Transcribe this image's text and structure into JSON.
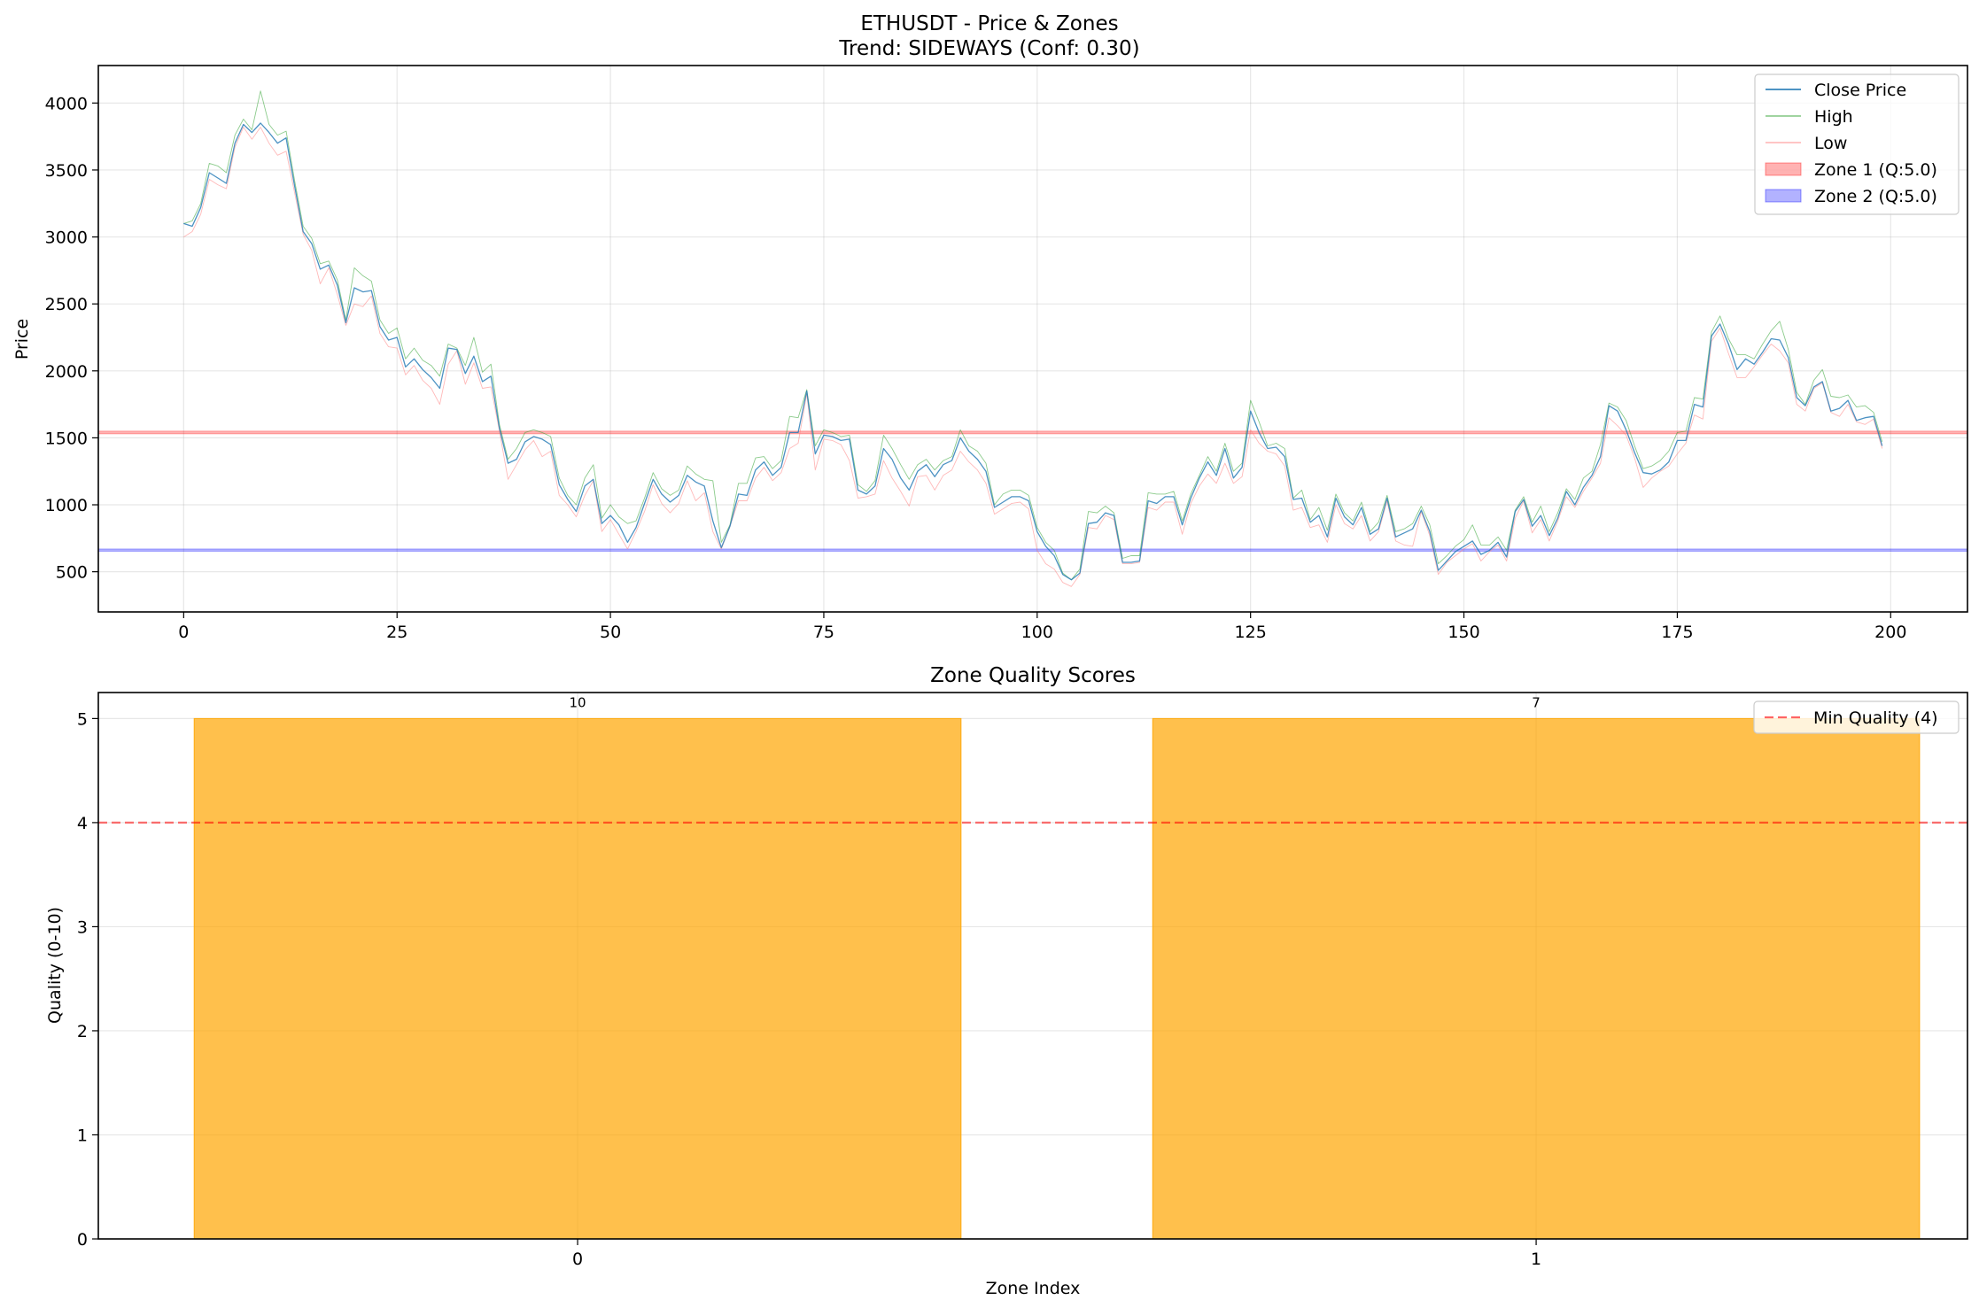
{
  "chart_data": [
    {
      "type": "line",
      "title": "ETHUSDT - Price & Zones",
      "subtitle": "Trend: SIDEWAYS (Conf: 0.30)",
      "xlabel": "",
      "ylabel": "Price",
      "xlim": [
        -10,
        209
      ],
      "ylim": [
        200,
        4280
      ],
      "xticks": [
        0,
        25,
        50,
        75,
        100,
        125,
        150,
        175,
        200
      ],
      "yticks": [
        500,
        1000,
        1500,
        2000,
        2500,
        3000,
        3500,
        4000
      ],
      "grid": true,
      "legend": "top-right",
      "x": [
        0,
        1,
        2,
        3,
        4,
        5,
        6,
        7,
        8,
        9,
        10,
        11,
        12,
        13,
        14,
        15,
        16,
        17,
        18,
        19,
        20,
        21,
        22,
        23,
        24,
        25,
        26,
        27,
        28,
        29,
        30,
        31,
        32,
        33,
        34,
        35,
        36,
        37,
        38,
        39,
        40,
        41,
        42,
        43,
        44,
        45,
        46,
        47,
        48,
        49,
        50,
        51,
        52,
        53,
        54,
        55,
        56,
        57,
        58,
        59,
        60,
        61,
        62,
        63,
        64,
        65,
        66,
        67,
        68,
        69,
        70,
        71,
        72,
        73,
        74,
        75,
        76,
        77,
        78,
        79,
        80,
        81,
        82,
        83,
        84,
        85,
        86,
        87,
        88,
        89,
        90,
        91,
        92,
        93,
        94,
        95,
        96,
        97,
        98,
        99,
        100,
        101,
        102,
        103,
        104,
        105,
        106,
        107,
        108,
        109,
        110,
        111,
        112,
        113,
        114,
        115,
        116,
        117,
        118,
        119,
        120,
        121,
        122,
        123,
        124,
        125,
        126,
        127,
        128,
        129,
        130,
        131,
        132,
        133,
        134,
        135,
        136,
        137,
        138,
        139,
        140,
        141,
        142,
        143,
        144,
        145,
        146,
        147,
        148,
        149,
        150,
        151,
        152,
        153,
        154,
        155,
        156,
        157,
        158,
        159,
        160,
        161,
        162,
        163,
        164,
        165,
        166,
        167,
        168,
        169,
        170,
        171,
        172,
        173,
        174,
        175,
        176,
        177,
        178,
        179,
        180,
        181,
        182,
        183,
        184,
        185,
        186,
        187,
        188,
        189,
        190,
        191,
        192,
        193,
        194,
        195,
        196,
        197,
        198,
        199
      ],
      "series": [
        {
          "name": "Close Price",
          "color": "#1f77b4",
          "values": [
            3100,
            3080,
            3220,
            3480,
            3440,
            3400,
            3700,
            3840,
            3780,
            3850,
            3780,
            3700,
            3740,
            3380,
            3040,
            2950,
            2760,
            2790,
            2640,
            2360,
            2620,
            2590,
            2600,
            2330,
            2230,
            2250,
            2030,
            2090,
            2010,
            1950,
            1870,
            2170,
            2160,
            1980,
            2110,
            1920,
            1960,
            1570,
            1310,
            1340,
            1470,
            1510,
            1490,
            1450,
            1150,
            1040,
            950,
            1140,
            1190,
            860,
            920,
            850,
            720,
            830,
            1010,
            1190,
            1080,
            1020,
            1070,
            1220,
            1170,
            1140,
            880,
            680,
            840,
            1080,
            1070,
            1260,
            1320,
            1220,
            1280,
            1540,
            1540,
            1850,
            1380,
            1520,
            1510,
            1480,
            1490,
            1110,
            1080,
            1140,
            1420,
            1340,
            1200,
            1110,
            1250,
            1300,
            1210,
            1300,
            1330,
            1500,
            1400,
            1340,
            1250,
            980,
            1020,
            1060,
            1060,
            1030,
            800,
            690,
            620,
            480,
            440,
            490,
            860,
            870,
            940,
            920,
            570,
            570,
            580,
            1030,
            1010,
            1060,
            1060,
            850,
            1050,
            1200,
            1320,
            1220,
            1420,
            1200,
            1280,
            1700,
            1540,
            1420,
            1430,
            1360,
            1040,
            1050,
            870,
            920,
            760,
            1050,
            910,
            850,
            980,
            780,
            820,
            1050,
            760,
            790,
            820,
            960,
            800,
            510,
            580,
            650,
            690,
            730,
            630,
            660,
            720,
            610,
            950,
            1040,
            840,
            920,
            770,
            900,
            1100,
            1000,
            1130,
            1220,
            1360,
            1740,
            1700,
            1560,
            1390,
            1240,
            1230,
            1260,
            1320,
            1480,
            1480,
            1750,
            1730,
            2260,
            2350,
            2200,
            2010,
            2090,
            2050,
            2140,
            2240,
            2230,
            2100,
            1800,
            1740,
            1880,
            1920,
            1700,
            1720,
            1780,
            1630,
            1650,
            1660,
            1440
          ]
        },
        {
          "name": "High",
          "color": "#2ca02c",
          "values": [
            3100,
            3120,
            3250,
            3550,
            3530,
            3480,
            3760,
            3880,
            3800,
            4090,
            3840,
            3760,
            3790,
            3420,
            3080,
            2990,
            2800,
            2820,
            2680,
            2380,
            2770,
            2710,
            2670,
            2380,
            2280,
            2320,
            2090,
            2170,
            2080,
            2040,
            1960,
            2200,
            2170,
            2040,
            2250,
            1990,
            2050,
            1600,
            1340,
            1420,
            1540,
            1560,
            1540,
            1510,
            1200,
            1070,
            1000,
            1200,
            1300,
            900,
            1000,
            910,
            860,
            880,
            1050,
            1240,
            1120,
            1070,
            1110,
            1290,
            1230,
            1190,
            1180,
            720,
            850,
            1160,
            1160,
            1350,
            1360,
            1270,
            1330,
            1660,
            1650,
            1860,
            1440,
            1560,
            1540,
            1510,
            1520,
            1150,
            1100,
            1180,
            1520,
            1420,
            1300,
            1190,
            1300,
            1340,
            1260,
            1330,
            1360,
            1560,
            1440,
            1400,
            1310,
            1000,
            1080,
            1110,
            1110,
            1070,
            830,
            720,
            660,
            490,
            440,
            520,
            950,
            940,
            990,
            940,
            600,
            620,
            620,
            1090,
            1080,
            1080,
            1100,
            880,
            1080,
            1220,
            1360,
            1250,
            1460,
            1250,
            1310,
            1780,
            1620,
            1440,
            1460,
            1420,
            1050,
            1110,
            890,
            980,
            810,
            1080,
            940,
            880,
            1020,
            800,
            870,
            1070,
            800,
            820,
            860,
            990,
            850,
            560,
            620,
            690,
            740,
            850,
            700,
            700,
            760,
            660,
            960,
            1060,
            870,
            990,
            800,
            940,
            1120,
            1040,
            1200,
            1250,
            1450,
            1760,
            1730,
            1630,
            1440,
            1270,
            1290,
            1330,
            1400,
            1540,
            1550,
            1800,
            1790,
            2290,
            2410,
            2240,
            2120,
            2120,
            2090,
            2200,
            2300,
            2370,
            2160,
            1840,
            1750,
            1930,
            2010,
            1810,
            1800,
            1820,
            1730,
            1740,
            1690,
            1470
          ]
        },
        {
          "name": "Low",
          "color": "#ff7f7f",
          "values": [
            3000,
            3040,
            3170,
            3430,
            3390,
            3360,
            3670,
            3820,
            3730,
            3820,
            3700,
            3610,
            3640,
            3330,
            3020,
            2900,
            2650,
            2770,
            2570,
            2340,
            2500,
            2480,
            2560,
            2280,
            2180,
            2170,
            1970,
            2040,
            1930,
            1870,
            1750,
            2050,
            2150,
            1900,
            2060,
            1870,
            1880,
            1550,
            1190,
            1300,
            1410,
            1480,
            1360,
            1400,
            1070,
            1000,
            910,
            1070,
            1180,
            800,
            890,
            780,
            670,
            800,
            950,
            1150,
            1010,
            940,
            1010,
            1180,
            1030,
            1090,
            800,
            670,
            840,
            1030,
            1030,
            1200,
            1280,
            1180,
            1240,
            1420,
            1460,
            1830,
            1260,
            1490,
            1480,
            1450,
            1330,
            1050,
            1060,
            1080,
            1330,
            1200,
            1100,
            990,
            1210,
            1220,
            1110,
            1220,
            1260,
            1400,
            1320,
            1260,
            1160,
            930,
            970,
            1010,
            1020,
            970,
            660,
            560,
            520,
            420,
            390,
            480,
            830,
            820,
            920,
            890,
            560,
            560,
            570,
            980,
            960,
            1020,
            1020,
            780,
            1010,
            1140,
            1230,
            1160,
            1310,
            1160,
            1210,
            1560,
            1460,
            1400,
            1380,
            1290,
            960,
            980,
            830,
            850,
            720,
            1000,
            860,
            820,
            920,
            730,
            800,
            1030,
            730,
            700,
            690,
            950,
            770,
            480,
            570,
            620,
            670,
            710,
            580,
            650,
            700,
            580,
            900,
            1030,
            790,
            890,
            730,
            880,
            1060,
            980,
            1100,
            1200,
            1310,
            1650,
            1590,
            1520,
            1350,
            1130,
            1200,
            1250,
            1290,
            1380,
            1460,
            1670,
            1640,
            2220,
            2320,
            2130,
            1950,
            1950,
            2030,
            2120,
            2200,
            2150,
            2060,
            1750,
            1700,
            1870,
            1910,
            1690,
            1660,
            1750,
            1620,
            1600,
            1640,
            1420
          ]
        }
      ],
      "zones": [
        {
          "name": "Zone 1 (Q:5.0)",
          "color": "#ff0000",
          "low": 1530,
          "high": 1550
        },
        {
          "name": "Zone 2 (Q:5.0)",
          "color": "#0000ff",
          "low": 655,
          "high": 670
        }
      ]
    },
    {
      "type": "bar",
      "title": "Zone Quality Scores",
      "xlabel": "Zone Index",
      "ylabel": "Quality (0-10)",
      "categories": [
        "0",
        "1"
      ],
      "values": [
        5,
        5
      ],
      "bar_labels": [
        "10",
        "7"
      ],
      "color": "#FFA500",
      "xlim": [
        -0.5,
        1.45
      ],
      "ylim": [
        0,
        5.25
      ],
      "yticks": [
        0,
        1,
        2,
        3,
        4,
        5
      ],
      "grid": true,
      "legend": "top-right",
      "reference_line": {
        "name": "Min Quality (4)",
        "value": 4,
        "color": "#ff0000"
      }
    }
  ]
}
